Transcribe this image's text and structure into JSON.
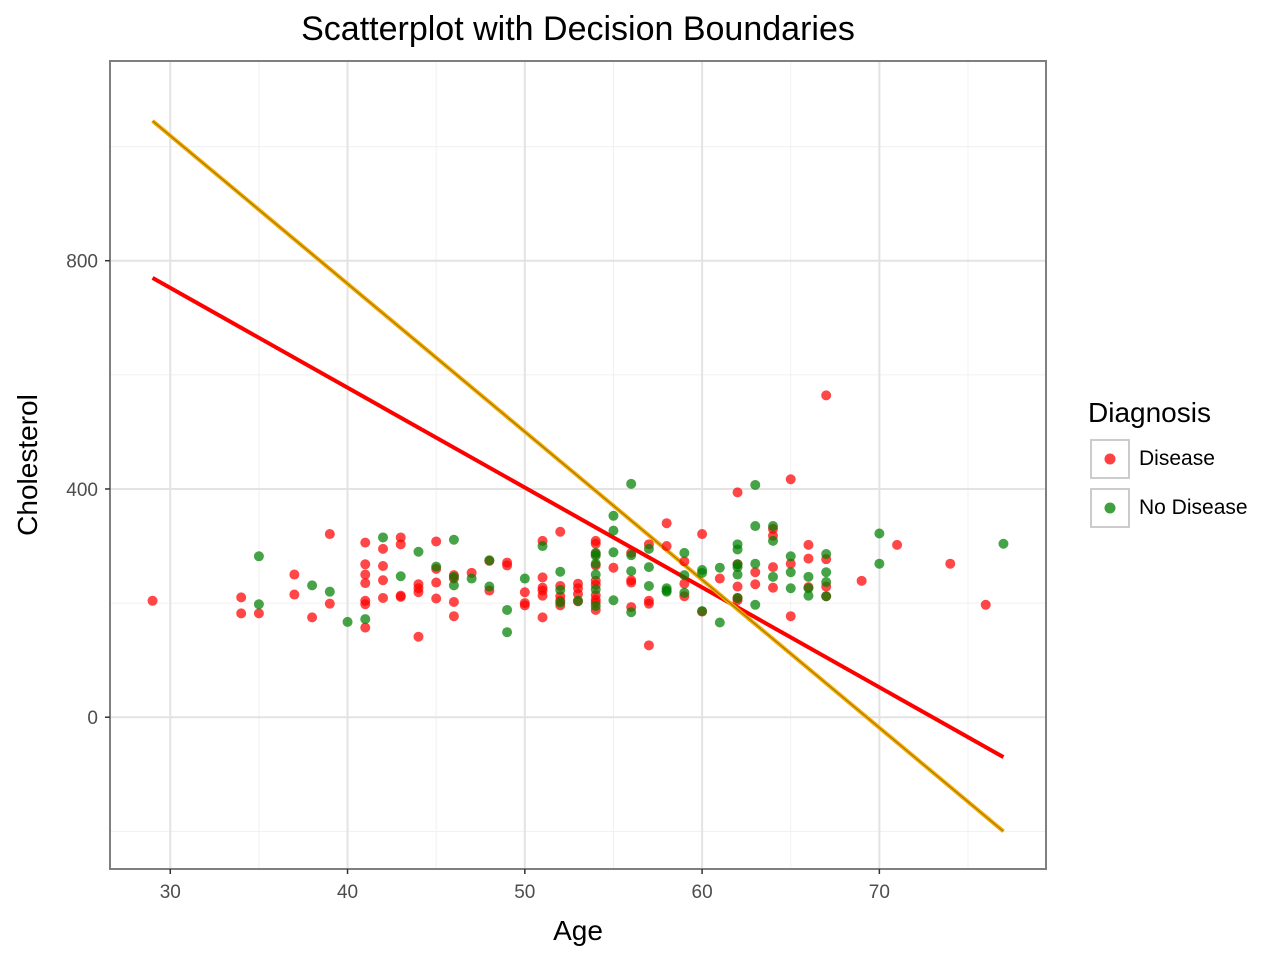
{
  "chart_data": {
    "type": "scatter",
    "title": "Scatterplot with Decision Boundaries",
    "xlabel": "Age",
    "ylabel": "Cholesterol",
    "xlim": [
      26.6,
      79.4
    ],
    "ylim": [
      -266,
      1150
    ],
    "x_ticks": [
      30,
      40,
      50,
      60,
      70
    ],
    "y_ticks": [
      0,
      400,
      800
    ],
    "grid": true,
    "legend": {
      "title": "Diagnosis",
      "position": "right",
      "entries": [
        {
          "label": "Disease",
          "color": "#ff0000"
        },
        {
          "label": "No Disease",
          "color": "#008000"
        }
      ]
    },
    "series": [
      {
        "name": "Disease",
        "color": "#ff0000",
        "points": [
          [
            29,
            204
          ],
          [
            34,
            210
          ],
          [
            34,
            182
          ],
          [
            35,
            182
          ],
          [
            37,
            250
          ],
          [
            37,
            215
          ],
          [
            38,
            175
          ],
          [
            39,
            199
          ],
          [
            39,
            321
          ],
          [
            41,
            306
          ],
          [
            41,
            268
          ],
          [
            41,
            250
          ],
          [
            41,
            235
          ],
          [
            41,
            204
          ],
          [
            41,
            198
          ],
          [
            41,
            157
          ],
          [
            42,
            295
          ],
          [
            42,
            265
          ],
          [
            42,
            240
          ],
          [
            42,
            209
          ],
          [
            43,
            315
          ],
          [
            43,
            303
          ],
          [
            43,
            213
          ],
          [
            43,
            211
          ],
          [
            44,
            233
          ],
          [
            44,
            226
          ],
          [
            44,
            219
          ],
          [
            44,
            141
          ],
          [
            45,
            308
          ],
          [
            45,
            260
          ],
          [
            45,
            236
          ],
          [
            45,
            208
          ],
          [
            46,
            249
          ],
          [
            46,
            243
          ],
          [
            46,
            202
          ],
          [
            46,
            177
          ],
          [
            47,
            253
          ],
          [
            48,
            274
          ],
          [
            48,
            222
          ],
          [
            49,
            271
          ],
          [
            49,
            266
          ],
          [
            50,
            219
          ],
          [
            50,
            200
          ],
          [
            50,
            196
          ],
          [
            51,
            309
          ],
          [
            51,
            245
          ],
          [
            51,
            227
          ],
          [
            51,
            222
          ],
          [
            51,
            213
          ],
          [
            51,
            175
          ],
          [
            52,
            325
          ],
          [
            52,
            230
          ],
          [
            52,
            212
          ],
          [
            52,
            204
          ],
          [
            52,
            196
          ],
          [
            53,
            234
          ],
          [
            53,
            226
          ],
          [
            53,
            216
          ],
          [
            53,
            203
          ],
          [
            54,
            309
          ],
          [
            54,
            304
          ],
          [
            54,
            286
          ],
          [
            54,
            266
          ],
          [
            54,
            239
          ],
          [
            54,
            232
          ],
          [
            54,
            214
          ],
          [
            54,
            206
          ],
          [
            54,
            201
          ],
          [
            54,
            188
          ],
          [
            55,
            262
          ],
          [
            56,
            288
          ],
          [
            56,
            240
          ],
          [
            56,
            236
          ],
          [
            56,
            193
          ],
          [
            57,
            303
          ],
          [
            57,
            204
          ],
          [
            57,
            199
          ],
          [
            57,
            126
          ],
          [
            58,
            340
          ],
          [
            58,
            300
          ],
          [
            59,
            273
          ],
          [
            59,
            234
          ],
          [
            59,
            212
          ],
          [
            60,
            321
          ],
          [
            60,
            185
          ],
          [
            61,
            243
          ],
          [
            62,
            394
          ],
          [
            62,
            268
          ],
          [
            62,
            229
          ],
          [
            62,
            209
          ],
          [
            62,
            205
          ],
          [
            63,
            254
          ],
          [
            63,
            233
          ],
          [
            64,
            330
          ],
          [
            64,
            318
          ],
          [
            64,
            263
          ],
          [
            64,
            227
          ],
          [
            65,
            417
          ],
          [
            65,
            269
          ],
          [
            65,
            177
          ],
          [
            66,
            302
          ],
          [
            66,
            278
          ],
          [
            66,
            228
          ],
          [
            67,
            564
          ],
          [
            67,
            277
          ],
          [
            67,
            229
          ],
          [
            67,
            212
          ],
          [
            69,
            239
          ],
          [
            71,
            302
          ],
          [
            74,
            269
          ],
          [
            76,
            197
          ]
        ]
      },
      {
        "name": "No Disease",
        "color": "#008000",
        "points": [
          [
            35,
            282
          ],
          [
            35,
            198
          ],
          [
            38,
            231
          ],
          [
            39,
            220
          ],
          [
            40,
            167
          ],
          [
            41,
            172
          ],
          [
            42,
            315
          ],
          [
            43,
            247
          ],
          [
            44,
            290
          ],
          [
            45,
            264
          ],
          [
            46,
            311
          ],
          [
            46,
            246
          ],
          [
            46,
            231
          ],
          [
            47,
            243
          ],
          [
            48,
            275
          ],
          [
            48,
            229
          ],
          [
            49,
            188
          ],
          [
            49,
            149
          ],
          [
            50,
            243
          ],
          [
            51,
            300
          ],
          [
            52,
            255
          ],
          [
            52,
            223
          ],
          [
            52,
            201
          ],
          [
            53,
            204
          ],
          [
            54,
            288
          ],
          [
            54,
            283
          ],
          [
            54,
            269
          ],
          [
            54,
            250
          ],
          [
            54,
            224
          ],
          [
            54,
            195
          ],
          [
            55,
            353
          ],
          [
            55,
            327
          ],
          [
            55,
            289
          ],
          [
            55,
            205
          ],
          [
            56,
            409
          ],
          [
            56,
            284
          ],
          [
            56,
            256
          ],
          [
            56,
            184
          ],
          [
            57,
            295
          ],
          [
            57,
            263
          ],
          [
            57,
            230
          ],
          [
            58,
            226
          ],
          [
            58,
            222
          ],
          [
            58,
            220
          ],
          [
            59,
            288
          ],
          [
            59,
            249
          ],
          [
            59,
            218
          ],
          [
            60,
            258
          ],
          [
            60,
            253
          ],
          [
            60,
            186
          ],
          [
            61,
            262
          ],
          [
            61,
            166
          ],
          [
            62,
            303
          ],
          [
            62,
            294
          ],
          [
            62,
            268
          ],
          [
            62,
            263
          ],
          [
            62,
            250
          ],
          [
            62,
            209
          ],
          [
            63,
            407
          ],
          [
            63,
            335
          ],
          [
            63,
            269
          ],
          [
            63,
            197
          ],
          [
            64,
            335
          ],
          [
            64,
            309
          ],
          [
            64,
            246
          ],
          [
            65,
            282
          ],
          [
            65,
            254
          ],
          [
            65,
            226
          ],
          [
            66,
            246
          ],
          [
            66,
            226
          ],
          [
            66,
            213
          ],
          [
            67,
            286
          ],
          [
            67,
            254
          ],
          [
            67,
            237
          ],
          [
            67,
            212
          ],
          [
            70,
            322
          ],
          [
            70,
            269
          ],
          [
            77,
            304
          ]
        ]
      }
    ],
    "lines": [
      {
        "color": "#ff0000",
        "x": [
          29,
          77
        ],
        "y": [
          770,
          -70
        ]
      },
      {
        "color": "#ffa500",
        "x": [
          29,
          77
        ],
        "y": [
          1045,
          -200
        ]
      },
      {
        "color": "#808000",
        "x": [
          29,
          77
        ],
        "y": [
          1045,
          -200
        ]
      }
    ]
  }
}
